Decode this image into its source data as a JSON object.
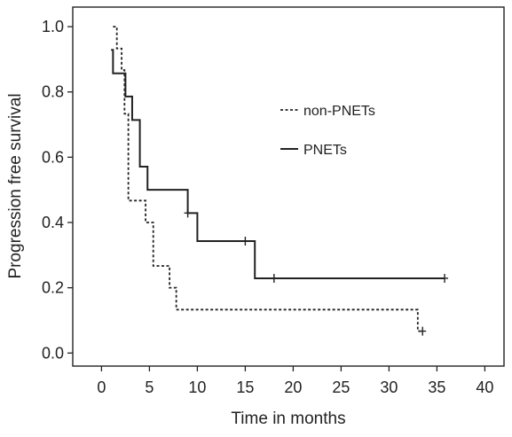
{
  "chart_data": {
    "type": "line",
    "title": "",
    "xlabel": "Time in months",
    "ylabel": "Progression free survival",
    "xlim": [
      -3,
      42
    ],
    "ylim": [
      -0.04,
      1.06
    ],
    "x_ticks": [
      0,
      5,
      10,
      15,
      20,
      25,
      30,
      35,
      40
    ],
    "y_ticks": [
      0.0,
      0.2,
      0.4,
      0.6,
      0.8,
      1.0
    ],
    "x_tick_labels": [
      "0",
      "5",
      "10",
      "15",
      "20",
      "25",
      "30",
      "35",
      "40"
    ],
    "y_tick_labels": [
      "0.0",
      "0.2",
      "0.4",
      "0.6",
      "0.8",
      "1.0"
    ],
    "grid": false,
    "legend_position": "top-right",
    "series": [
      {
        "name": "non-PNETs",
        "style": "dashed",
        "color": "#222222",
        "step_points": [
          [
            1.2,
            1.0
          ],
          [
            1.6,
            0.933
          ],
          [
            2.1,
            0.867
          ],
          [
            2.4,
            0.733
          ],
          [
            2.8,
            0.467
          ],
          [
            4.6,
            0.4
          ],
          [
            5.4,
            0.267
          ],
          [
            7.1,
            0.2
          ],
          [
            7.8,
            0.133
          ],
          [
            33.0,
            0.067
          ],
          [
            33.5,
            0.067
          ]
        ],
        "censored": [
          [
            33.5,
            0.067
          ]
        ]
      },
      {
        "name": "PNETs",
        "style": "solid",
        "color": "#222222",
        "step_points": [
          [
            1.0,
            0.929
          ],
          [
            1.2,
            0.857
          ],
          [
            2.5,
            0.786
          ],
          [
            3.2,
            0.714
          ],
          [
            4.0,
            0.571
          ],
          [
            4.8,
            0.5
          ],
          [
            9.0,
            0.429
          ],
          [
            10.0,
            0.343
          ],
          [
            16.0,
            0.229
          ],
          [
            35.8,
            0.229
          ]
        ],
        "censored": [
          [
            9.0,
            0.429
          ],
          [
            15.0,
            0.343
          ],
          [
            18.0,
            0.229
          ],
          [
            35.8,
            0.229
          ]
        ]
      }
    ]
  }
}
